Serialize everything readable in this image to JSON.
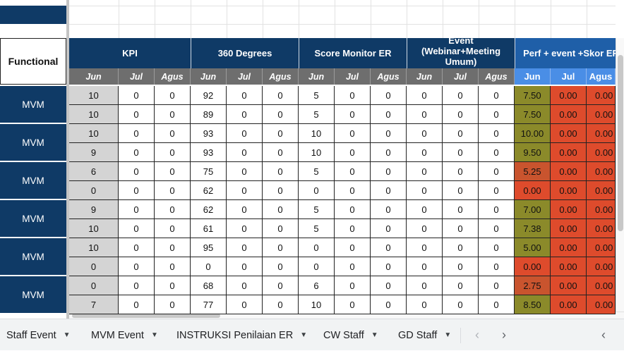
{
  "header": {
    "functional": "Functional",
    "groups": [
      "KPI",
      "360 Degrees",
      "Score Monitor ER",
      "Event (Webinar+Meeting Umum)",
      "Perf + event +Skor ER"
    ],
    "months": [
      "Jun",
      "Jul",
      "Agus"
    ]
  },
  "functional_labels": [
    "MVM",
    "MVM",
    "MVM",
    "MVM",
    "MVM",
    "MVM"
  ],
  "rows": [
    [
      "10",
      "0",
      "0",
      "92",
      "0",
      "0",
      "5",
      "0",
      "0",
      "0",
      "0",
      "0",
      "7.50",
      "0.00",
      "0.00"
    ],
    [
      "10",
      "0",
      "0",
      "89",
      "0",
      "0",
      "5",
      "0",
      "0",
      "0",
      "0",
      "0",
      "7.50",
      "0.00",
      "0.00"
    ],
    [
      "10",
      "0",
      "0",
      "93",
      "0",
      "0",
      "10",
      "0",
      "0",
      "0",
      "0",
      "0",
      "10.00",
      "0.00",
      "0.00"
    ],
    [
      "9",
      "0",
      "0",
      "93",
      "0",
      "0",
      "10",
      "0",
      "0",
      "0",
      "0",
      "0",
      "9.50",
      "0.00",
      "0.00"
    ],
    [
      "6",
      "0",
      "0",
      "75",
      "0",
      "0",
      "5",
      "0",
      "0",
      "0",
      "0",
      "0",
      "5.25",
      "0.00",
      "0.00"
    ],
    [
      "0",
      "0",
      "0",
      "62",
      "0",
      "0",
      "0",
      "0",
      "0",
      "0",
      "0",
      "0",
      "0.00",
      "0.00",
      "0.00"
    ],
    [
      "9",
      "0",
      "0",
      "62",
      "0",
      "0",
      "5",
      "0",
      "0",
      "0",
      "0",
      "0",
      "7.00",
      "0.00",
      "0.00"
    ],
    [
      "10",
      "0",
      "0",
      "61",
      "0",
      "0",
      "5",
      "0",
      "0",
      "0",
      "0",
      "0",
      "7.38",
      "0.00",
      "0.00"
    ],
    [
      "10",
      "0",
      "0",
      "95",
      "0",
      "0",
      "0",
      "0",
      "0",
      "0",
      "0",
      "0",
      "5.00",
      "0.00",
      "0.00"
    ],
    [
      "0",
      "0",
      "0",
      "0",
      "0",
      "0",
      "0",
      "0",
      "0",
      "0",
      "0",
      "0",
      "0.00",
      "0.00",
      "0.00"
    ],
    [
      "0",
      "0",
      "0",
      "68",
      "0",
      "0",
      "6",
      "0",
      "0",
      "0",
      "0",
      "0",
      "2.75",
      "0.00",
      "0.00"
    ],
    [
      "7",
      "0",
      "0",
      "77",
      "0",
      "0",
      "10",
      "0",
      "0",
      "0",
      "0",
      "0",
      "8.50",
      "0.00",
      "0.00"
    ]
  ],
  "perf_jun_colors": [
    "olive",
    "olive",
    "olive",
    "olive",
    "orange",
    "red",
    "olive",
    "olive",
    "olive",
    "red",
    "orange",
    "olive"
  ],
  "colors": {
    "dark_header": "#0f3a66",
    "light_blue_header": "#4a8ee6",
    "gray_subheader": "#6e6e6e",
    "olive": "#8b8a2a",
    "orange": "#c9542e",
    "red": "#de4b2c"
  },
  "sheet_tabs": [
    {
      "label": "Staff Event"
    },
    {
      "label": "MVM Event"
    },
    {
      "label": "INSTRUKSI Penilaian ER"
    },
    {
      "label": "CW Staff"
    },
    {
      "label": "GD Staff"
    }
  ],
  "icons": [
    "chevron-left-icon",
    "chevron-right-icon",
    "collapse-tabs-icon",
    "dropdown-caret-icon"
  ]
}
